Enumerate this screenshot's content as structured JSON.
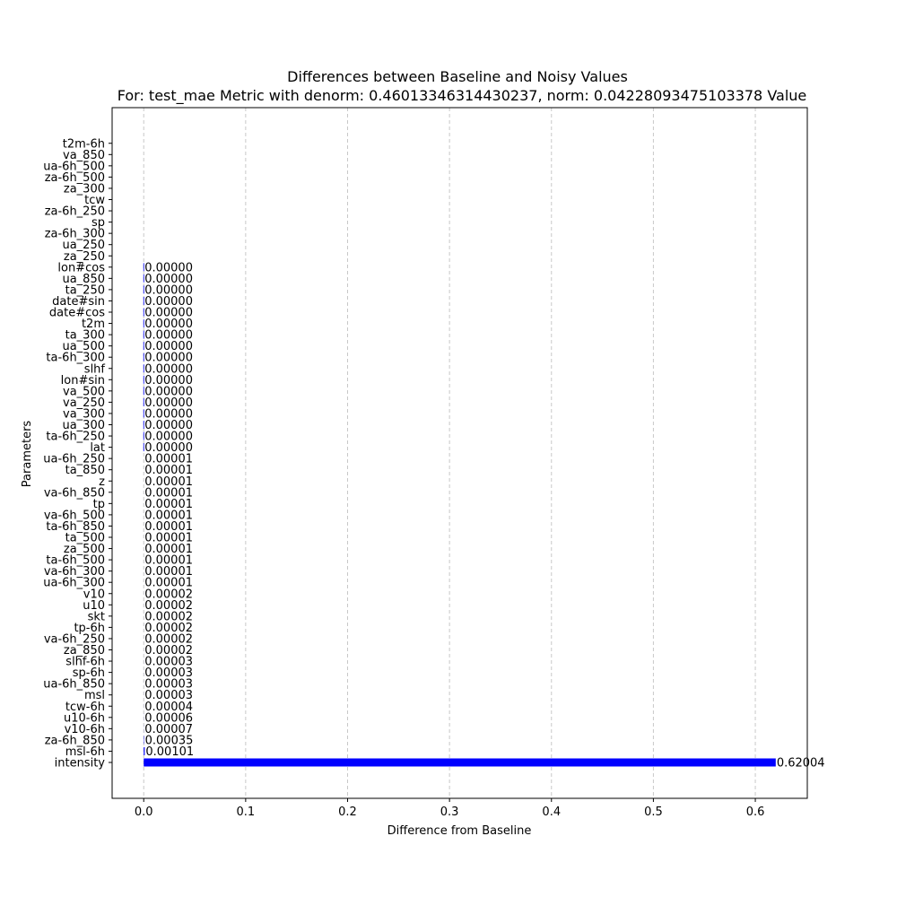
{
  "chart_data": {
    "type": "bar",
    "orientation": "horizontal",
    "title": "Differences between Baseline and Noisy Values",
    "subtitle": "For: test_mae Metric with denorm: 0.46013346314430237, norm: 0.04228093475103378 Value",
    "xlabel": "Difference from Baseline",
    "ylabel": "Parameters",
    "xlim": [
      -0.031,
      0.651
    ],
    "x_ticks": [
      "0.0",
      "0.1",
      "0.2",
      "0.3",
      "0.4",
      "0.5",
      "0.6"
    ],
    "grid": "x dashed",
    "bar_color": "#0000ff",
    "categories": [
      "intensity",
      "msl-6h",
      "za-6h_850",
      "v10-6h",
      "u10-6h",
      "tcw-6h",
      "msl",
      "ua-6h_850",
      "sp-6h",
      "slhf-6h",
      "za_850",
      "va-6h_250",
      "tp-6h",
      "skt",
      "u10",
      "v10",
      "ua-6h_300",
      "va-6h_300",
      "ta-6h_500",
      "za_500",
      "ta_500",
      "ta-6h_850",
      "va-6h_500",
      "tp",
      "va-6h_850",
      "z",
      "ta_850",
      "ua-6h_250",
      "lat",
      "ta-6h_250",
      "ua_300",
      "va_300",
      "va_250",
      "va_500",
      "lon#sin",
      "slhf",
      "ta-6h_300",
      "ua_500",
      "ta_300",
      "t2m",
      "date#cos",
      "date#sin",
      "ta_250",
      "ua_850",
      "lon#cos",
      "za_250",
      "ua_250",
      "za-6h_300",
      "sp",
      "za-6h_250",
      "tcw",
      "za_300",
      "za-6h_500",
      "ua-6h_500",
      "va_850",
      "t2m-6h"
    ],
    "values": [
      0.62004,
      0.00101,
      0.00035,
      7e-05,
      6e-05,
      4e-05,
      3e-05,
      3e-05,
      3e-05,
      3e-05,
      2e-05,
      2e-05,
      2e-05,
      2e-05,
      2e-05,
      2e-05,
      1e-05,
      1e-05,
      1e-05,
      1e-05,
      1e-05,
      1e-05,
      1e-05,
      1e-05,
      1e-05,
      1e-05,
      1e-05,
      1e-05,
      0.0,
      0.0,
      0.0,
      0.0,
      0.0,
      0.0,
      0.0,
      0.0,
      0.0,
      0.0,
      0.0,
      0.0,
      0.0,
      0.0,
      0.0,
      0.0,
      0.0,
      null,
      null,
      null,
      null,
      null,
      null,
      null,
      null,
      null,
      null,
      null
    ],
    "value_labels": [
      "0.62004",
      "0.00101",
      "0.00035",
      "0.00007",
      "0.00006",
      "0.00004",
      "0.00003",
      "0.00003",
      "0.00003",
      "0.00003",
      "0.00002",
      "0.00002",
      "0.00002",
      "0.00002",
      "0.00002",
      "0.00002",
      "0.00001",
      "0.00001",
      "0.00001",
      "0.00001",
      "0.00001",
      "0.00001",
      "0.00001",
      "0.00001",
      "0.00001",
      "0.00001",
      "0.00001",
      "0.00001",
      "0.00000",
      "0.00000",
      "0.00000",
      "0.00000",
      "0.00000",
      "0.00000",
      "0.00000",
      "0.00000",
      "0.00000",
      "0.00000",
      "0.00000",
      "0.00000",
      "0.00000",
      "0.00000",
      "0.00000",
      "0.00000",
      "0.00000",
      "",
      "",
      "",
      "",
      "",
      "",
      "",
      "",
      "",
      "",
      ""
    ]
  }
}
